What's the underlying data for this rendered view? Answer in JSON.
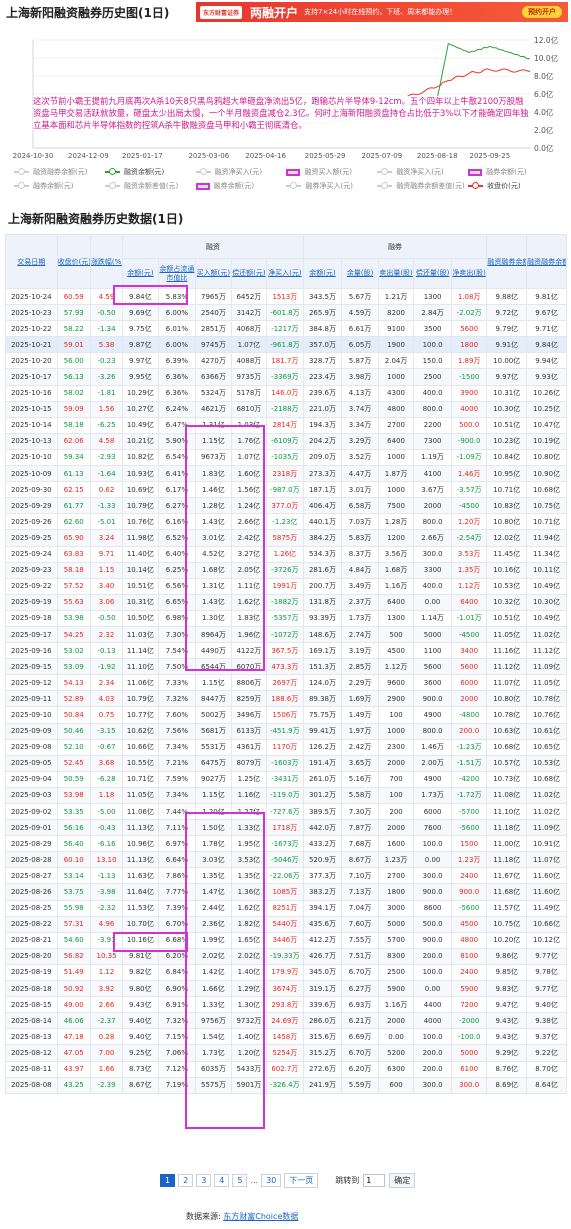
{
  "page": {
    "title": "上海新阳融资融券历史图(1日)",
    "table_title": "上海新阳融资融券历史数据(1日)",
    "source_label": "数据来源:",
    "source_link": "东方财富Choice数据"
  },
  "banner": {
    "brand": "东方财富证券",
    "headline": "两融开户",
    "desc": "支持7×24小时在线预约，下班、周末都能办理！",
    "button": "预约开户"
  },
  "chart_data": {
    "type": "line",
    "x_ticks": [
      "2024-10-30",
      "2024-12-09",
      "2025-01-17",
      "2025-03-06",
      "2025-04-16",
      "2025-05-29",
      "2025-07-09",
      "2025-08-18",
      "2025-09-25"
    ],
    "y_right_ticks": [
      "12.0亿",
      "10.0亿",
      "8.0亿",
      "6.0亿",
      "4.0亿",
      "2.0亿",
      "0.0亿"
    ],
    "ylim": [
      0,
      12
    ],
    "series": [
      {
        "name": "融资余额(元)",
        "color": "#2ba23a",
        "x": [
          "2024-10-30",
          "2024-12-09",
          "2025-01-17",
          "2025-03-06",
          "2025-04-16",
          "2025-05-29",
          "2025-07-09",
          "2025-08-18",
          "2025-08-26",
          "2025-09-10",
          "2025-09-25",
          "2025-10-24"
        ],
        "values": [
          2.4,
          2.5,
          2.6,
          2.6,
          2.7,
          2.8,
          3.6,
          5.5,
          11.6,
          10.6,
          11.3,
          9.9
        ]
      },
      {
        "name": "收盘价(元)",
        "color": "#e03a2f",
        "x": [
          "2024-10-30",
          "2024-12-09",
          "2025-01-17",
          "2025-03-06",
          "2025-04-16",
          "2025-05-29",
          "2025-07-09",
          "2025-08-18",
          "2025-08-26",
          "2025-09-10",
          "2025-09-25",
          "2025-10-24"
        ],
        "values": [
          3.6,
          3.7,
          3.8,
          3.5,
          3.4,
          3.9,
          4.7,
          6.8,
          7.5,
          8.3,
          8.7,
          8.5
        ]
      }
    ]
  },
  "annotation": "这次节前小霸王提前九月底再次A杀10天8只黑鸟鸦超大单砸盘净流出5亿，跑输芯片半导体9-12cm。五个四年以上牛散2100万股融资盘马甲交易活跃就放量，砸盘太少出局太慢，一个半月融资盘减仓2.3亿。何时上海新阳融资盘持仓占比低于3%以下才能确定四年独立基本面和芯片半导体指数的控筑A杀牛散融资盘马甲和小霸王彻底清仓。",
  "legend": [
    [
      "融资融券余额(元)",
      "融资余额(元)",
      "融资净买入(元)",
      "融资买入额(元)",
      "融资净买入(元)",
      "融券余额(元)"
    ],
    [
      "融券余额(元)",
      "融资余额差值(元)",
      "融券余额(元)",
      "融券净买入(元)",
      "融资融券余额差值(元)",
      "收盘价(元)"
    ]
  ],
  "table": {
    "groups": {
      "rz": "融资",
      "rq": "融券"
    },
    "headers": {
      "date": "交易日期",
      "close": "收盘价(元)",
      "pct": "涨跌幅(%)",
      "rz_bal": "余额(元)",
      "rz_ratio": "余额占流通市值比",
      "rz_buy": "买入额(元)",
      "rz_repay": "偿还额(元)",
      "rz_net": "净买入(元)",
      "rq_bal": "余额(元)",
      "rq_qty": "余量(股)",
      "rq_sell": "卖出量(股)",
      "rq_repay": "偿还量(股)",
      "rq_net": "净卖出(股)",
      "total": "融资融券余额(元)",
      "diff": "融资融券余额差值(元)"
    },
    "rows": [
      [
        "2025-10-24",
        "60.59",
        "4.59",
        "9.84亿",
        "5.83%",
        "7965万",
        "6452万",
        "1513万",
        "343.5万",
        "5.67万",
        "1.21万",
        "1300",
        "1.08万",
        "9.88亿",
        "9.81亿"
      ],
      [
        "2025-10-23",
        "57.93",
        "-0.50",
        "9.69亿",
        "6.00%",
        "2540万",
        "3142万",
        "-601.8万",
        "265.9万",
        "4.59万",
        "8200",
        "2.84万",
        "-2.02万",
        "9.72亿",
        "9.67亿"
      ],
      [
        "2025-10-22",
        "58.22",
        "-1.34",
        "9.75亿",
        "6.01%",
        "2851万",
        "4068万",
        "-1217万",
        "384.8万",
        "6.61万",
        "9100",
        "3500",
        "5600",
        "9.79亿",
        "9.71亿"
      ],
      [
        "2025-10-21",
        "59.01",
        "5.38",
        "9.87亿",
        "6.00%",
        "9745万",
        "1.07亿",
        "-961.8万",
        "357.0万",
        "6.05万",
        "1900",
        "100.0",
        "1800",
        "9.91亿",
        "9.84亿"
      ],
      [
        "2025-10-20",
        "56.00",
        "-0.23",
        "9.97亿",
        "6.39%",
        "4270万",
        "4088万",
        "181.7万",
        "328.7万",
        "5.87万",
        "2.04万",
        "150.0",
        "1.89万",
        "10.00亿",
        "9.94亿"
      ],
      [
        "2025-10-17",
        "56.13",
        "-3.26",
        "9.95亿",
        "6.36%",
        "6366万",
        "9735万",
        "-3369万",
        "223.4万",
        "3.98万",
        "1000",
        "2500",
        "-1500",
        "9.97亿",
        "9.93亿"
      ],
      [
        "2025-10-16",
        "58.02",
        "-1.81",
        "10.29亿",
        "6.36%",
        "5324万",
        "5178万",
        "146.0万",
        "239.6万",
        "4.13万",
        "4300",
        "400.0",
        "3900",
        "10.31亿",
        "10.26亿"
      ],
      [
        "2025-10-15",
        "59.09",
        "1.56",
        "10.27亿",
        "6.24%",
        "4621万",
        "6810万",
        "-2188万",
        "221.0万",
        "3.74万",
        "4800",
        "800.0",
        "4000",
        "10.30亿",
        "10.25亿"
      ],
      [
        "2025-10-14",
        "58.18",
        "-6.25",
        "10.49亿",
        "6.47%",
        "1.31亿",
        "1.03亿",
        "2814万",
        "194.3万",
        "3.34万",
        "2700",
        "2200",
        "500.0",
        "10.51亿",
        "10.47亿"
      ],
      [
        "2025-10-13",
        "62.06",
        "4.58",
        "10.21亿",
        "5.90%",
        "1.15亿",
        "1.76亿",
        "-6109万",
        "204.2万",
        "3.29万",
        "6400",
        "7300",
        "-900.0",
        "10.23亿",
        "10.19亿"
      ],
      [
        "2025-10-10",
        "59.34",
        "-2.93",
        "10.82亿",
        "6.54%",
        "9673万",
        "1.07亿",
        "-1035万",
        "209.0万",
        "3.52万",
        "1000",
        "1.19万",
        "-1.09万",
        "10.84亿",
        "10.80亿"
      ],
      [
        "2025-10-09",
        "61.13",
        "-1.64",
        "10.93亿",
        "6.41%",
        "1.83亿",
        "1.60亿",
        "2318万",
        "273.3万",
        "4.47万",
        "1.87万",
        "4100",
        "1.46万",
        "10.95亿",
        "10.90亿"
      ],
      [
        "2025-09-30",
        "62.15",
        "0.62",
        "10.69亿",
        "6.17%",
        "1.46亿",
        "1.56亿",
        "-987.0万",
        "187.1万",
        "3.01万",
        "1000",
        "3.67万",
        "-3.57万",
        "10.71亿",
        "10.68亿"
      ],
      [
        "2025-09-29",
        "61.77",
        "-1.33",
        "10.79亿",
        "6.27%",
        "1.28亿",
        "1.24亿",
        "377.0万",
        "406.4万",
        "6.58万",
        "7500",
        "2000",
        "-4500",
        "10.83亿",
        "10.75亿"
      ],
      [
        "2025-09-26",
        "62.60",
        "-5.01",
        "10.76亿",
        "6.16%",
        "1.43亿",
        "2.66亿",
        "-1.23亿",
        "440.1万",
        "7.03万",
        "1.28万",
        "800.0",
        "1.20万",
        "10.80亿",
        "10.71亿"
      ],
      [
        "2025-09-25",
        "65.90",
        "3.24",
        "11.98亿",
        "6.52%",
        "3.01亿",
        "2.42亿",
        "5875万",
        "384.2万",
        "5.83万",
        "1200",
        "2.66万",
        "-2.54万",
        "12.02亿",
        "11.94亿"
      ],
      [
        "2025-09-24",
        "63.83",
        "9.71",
        "11.40亿",
        "6.40%",
        "4.52亿",
        "3.27亿",
        "1.26亿",
        "534.3万",
        "8.37万",
        "3.56万",
        "300.0",
        "3.53万",
        "11.45亿",
        "11.34亿"
      ],
      [
        "2025-09-23",
        "58.18",
        "1.15",
        "10.14亿",
        "6.25%",
        "1.68亿",
        "2.05亿",
        "-3726万",
        "281.6万",
        "4.84万",
        "1.68万",
        "3300",
        "1.35万",
        "10.16亿",
        "10.11亿"
      ],
      [
        "2025-09-22",
        "57.52",
        "3.40",
        "10.51亿",
        "6.56%",
        "1.31亿",
        "1.11亿",
        "1991万",
        "200.7万",
        "3.49万",
        "1.16万",
        "400.0",
        "1.12万",
        "10.53亿",
        "10.49亿"
      ],
      [
        "2025-09-19",
        "55.63",
        "3.06",
        "10.31亿",
        "6.65%",
        "1.43亿",
        "1.62亿",
        "-1882万",
        "131.8万",
        "2.37万",
        "6400",
        "0.00",
        "6400",
        "10.32亿",
        "10.30亿"
      ],
      [
        "2025-09-18",
        "53.98",
        "-0.50",
        "10.50亿",
        "6.98%",
        "1.30亿",
        "1.83亿",
        "-5357万",
        "93.39万",
        "1.73万",
        "1300",
        "1.14万",
        "-1.01万",
        "10.51亿",
        "10.49亿"
      ],
      [
        "2025-09-17",
        "54.25",
        "2.32",
        "11.03亿",
        "7.30%",
        "8964万",
        "1.96亿",
        "-1072万",
        "148.6万",
        "2.74万",
        "500",
        "5000",
        "-4500",
        "11.05亿",
        "11.02亿"
      ],
      [
        "2025-09-16",
        "53.02",
        "-0.13",
        "11.14亿",
        "7.54%",
        "4490万",
        "4122万",
        "367.5万",
        "169.1万",
        "3.19万",
        "4500",
        "1100",
        "3400",
        "11.16亿",
        "11.12亿"
      ],
      [
        "2025-09-15",
        "53.09",
        "-1.92",
        "11.10亿",
        "7.50%",
        "6544万",
        "6070万",
        "473.3万",
        "151.3万",
        "2.85万",
        "1.12万",
        "5600",
        "5600",
        "11.12亿",
        "11.09亿"
      ],
      [
        "2025-09-12",
        "54.13",
        "2.34",
        "11.06亿",
        "7.33%",
        "1.15亿",
        "8806万",
        "2697万",
        "124.0万",
        "2.29万",
        "9600",
        "3600",
        "6000",
        "11.07亿",
        "11.05亿"
      ],
      [
        "2025-09-11",
        "52.89",
        "4.03",
        "10.79亿",
        "7.32%",
        "8447万",
        "8259万",
        "188.6万",
        "89.38万",
        "1.69万",
        "2900",
        "900.0",
        "2000",
        "10.80亿",
        "10.78亿"
      ],
      [
        "2025-09-10",
        "50.84",
        "0.75",
        "10.77亿",
        "7.60%",
        "5002万",
        "3496万",
        "1506万",
        "75.75万",
        "1.49万",
        "100",
        "4900",
        "-4800",
        "10.78亿",
        "10.76亿"
      ],
      [
        "2025-09-09",
        "50.46",
        "-3.15",
        "10.62亿",
        "7.56%",
        "5681万",
        "6133万",
        "-451.9万",
        "99.41万",
        "1.97万",
        "1000",
        "800.0",
        "200.0",
        "10.63亿",
        "10.61亿"
      ],
      [
        "2025-09-08",
        "52.10",
        "-0.67",
        "10.66亿",
        "7.34%",
        "5531万",
        "4361万",
        "1170万",
        "126.2万",
        "2.42万",
        "2300",
        "1.46万",
        "-1.23万",
        "10.68亿",
        "10.65亿"
      ],
      [
        "2025-09-05",
        "52.45",
        "3.68",
        "10.55亿",
        "7.21%",
        "6475万",
        "8079万",
        "-1603万",
        "191.4万",
        "3.65万",
        "2000",
        "2.00万",
        "-1.51万",
        "10.57亿",
        "10.53亿"
      ],
      [
        "2025-09-04",
        "50.59",
        "-6.28",
        "10.71亿",
        "7.59%",
        "9027万",
        "1.25亿",
        "-3431万",
        "261.0万",
        "5.16万",
        "700",
        "4900",
        "-4200",
        "10.73亿",
        "10.68亿"
      ],
      [
        "2025-09-03",
        "53.98",
        "1.18",
        "11.05亿",
        "7.34%",
        "1.15亿",
        "1.16亿",
        "-119.0万",
        "301.2万",
        "5.58万",
        "100",
        "1.73万",
        "-1.72万",
        "11.08亿",
        "11.02亿"
      ],
      [
        "2025-09-02",
        "53.35",
        "-5.00",
        "11.06亿",
        "7.44%",
        "1.20亿",
        "1.27亿",
        "-727.6万",
        "389.5万",
        "7.30万",
        "200",
        "6000",
        "-5700",
        "11.10亿",
        "11.02亿"
      ],
      [
        "2025-09-01",
        "56.16",
        "-0.43",
        "11.13亿",
        "7.11%",
        "1.50亿",
        "1.33亿",
        "1718万",
        "442.0万",
        "7.87万",
        "2000",
        "7600",
        "-5600",
        "11.18亿",
        "11.09亿"
      ],
      [
        "2025-08-29",
        "56.40",
        "-6.16",
        "10.96亿",
        "6.97%",
        "1.78亿",
        "1.95亿",
        "-1673万",
        "433.2万",
        "7.68万",
        "1600",
        "100.0",
        "1500",
        "11.00亿",
        "10.91亿"
      ],
      [
        "2025-08-28",
        "60.10",
        "13.10",
        "11.13亿",
        "6.64%",
        "3.03亿",
        "3.53亿",
        "-5046万",
        "520.9万",
        "8.67万",
        "1.23万",
        "0.00",
        "1.23万",
        "11.18亿",
        "11.07亿"
      ],
      [
        "2025-08-27",
        "53.14",
        "-1.13",
        "11.63亿",
        "7.86%",
        "1.35亿",
        "1.35亿",
        "-22.06万",
        "377.3万",
        "7.10万",
        "2700",
        "300.0",
        "2400",
        "11.67亿",
        "11.60亿"
      ],
      [
        "2025-08-26",
        "53.75",
        "-3.98",
        "11.64亿",
        "7.77%",
        "1.47亿",
        "1.36亿",
        "1085万",
        "383.2万",
        "7.13万",
        "1800",
        "900.0",
        "900.0",
        "11.68亿",
        "11.60亿"
      ],
      [
        "2025-08-25",
        "55.98",
        "-2.32",
        "11.53亿",
        "7.39%",
        "2.44亿",
        "1.62亿",
        "8251万",
        "394.1万",
        "7.04万",
        "3000",
        "8600",
        "-5600",
        "11.57亿",
        "11.49亿"
      ],
      [
        "2025-08-22",
        "57.31",
        "4.96",
        "10.70亿",
        "6.70%",
        "2.36亿",
        "1.82亿",
        "5440万",
        "435.6万",
        "7.60万",
        "5000",
        "500.0",
        "4500",
        "10.75亿",
        "10.66亿"
      ],
      [
        "2025-08-21",
        "54.60",
        "-3.91",
        "10.16亿",
        "6.68%",
        "1.99亿",
        "1.65亿",
        "3446万",
        "412.2万",
        "7.55万",
        "5700",
        "900.0",
        "4800",
        "10.20亿",
        "10.12亿"
      ],
      [
        "2025-08-20",
        "56.82",
        "10.35",
        "9.81亿",
        "6.20%",
        "2.02亿",
        "2.02亿",
        "-19.33万",
        "426.7万",
        "7.51万",
        "8300",
        "200.0",
        "8100",
        "9.86亿",
        "9.77亿"
      ],
      [
        "2025-08-19",
        "51.49",
        "1.12",
        "9.82亿",
        "6.84%",
        "1.42亿",
        "1.40亿",
        "179.9万",
        "345.0万",
        "6.70万",
        "2500",
        "100.0",
        "2400",
        "9.85亿",
        "9.78亿"
      ],
      [
        "2025-08-18",
        "50.92",
        "3.92",
        "9.80亿",
        "6.90%",
        "1.66亿",
        "1.29亿",
        "3674万",
        "319.1万",
        "6.27万",
        "5900",
        "0.00",
        "5900",
        "9.83亿",
        "9.77亿"
      ],
      [
        "2025-08-15",
        "49.00",
        "2.66",
        "9.43亿",
        "6.91%",
        "1.33亿",
        "1.30亿",
        "293.8万",
        "339.6万",
        "6.93万",
        "1.16万",
        "4400",
        "7200",
        "9.47亿",
        "9.40亿"
      ],
      [
        "2025-08-14",
        "46.06",
        "-2.37",
        "9.40亿",
        "7.32%",
        "9756万",
        "9732万",
        "24.69万",
        "286.0万",
        "6.21万",
        "2000",
        "4000",
        "-2000",
        "9.43亿",
        "9.38亿"
      ],
      [
        "2025-08-13",
        "47.18",
        "0.28",
        "9.40亿",
        "7.15%",
        "1.54亿",
        "1.40亿",
        "1458万",
        "315.6万",
        "6.69万",
        "0.00",
        "100.0",
        "-100.0",
        "9.43亿",
        "9.37亿"
      ],
      [
        "2025-08-12",
        "47.05",
        "7.00",
        "9.25亿",
        "7.06%",
        "1.73亿",
        "1.20亿",
        "5254万",
        "315.2万",
        "6.70万",
        "5200",
        "200.0",
        "5000",
        "9.29亿",
        "9.22亿"
      ],
      [
        "2025-08-11",
        "43.97",
        "1.66",
        "8.73亿",
        "7.12%",
        "6035万",
        "5433万",
        "602.7万",
        "272.6万",
        "6.20万",
        "6300",
        "200.0",
        "6100",
        "8.76亿",
        "8.70亿"
      ],
      [
        "2025-08-08",
        "43.25",
        "-2.39",
        "8.67亿",
        "7.19%",
        "5575万",
        "5901万",
        "-326.4万",
        "241.9万",
        "5.59万",
        "600",
        "300.0",
        "300.0",
        "8.69亿",
        "8.64亿"
      ]
    ]
  },
  "pager": {
    "pages": [
      "1",
      "2",
      "3",
      "4",
      "5"
    ],
    "ellipsis": "...",
    "last": "30",
    "next": "下一页",
    "jump_label": "跳转到",
    "jump_value": "1",
    "confirm": "确定"
  }
}
